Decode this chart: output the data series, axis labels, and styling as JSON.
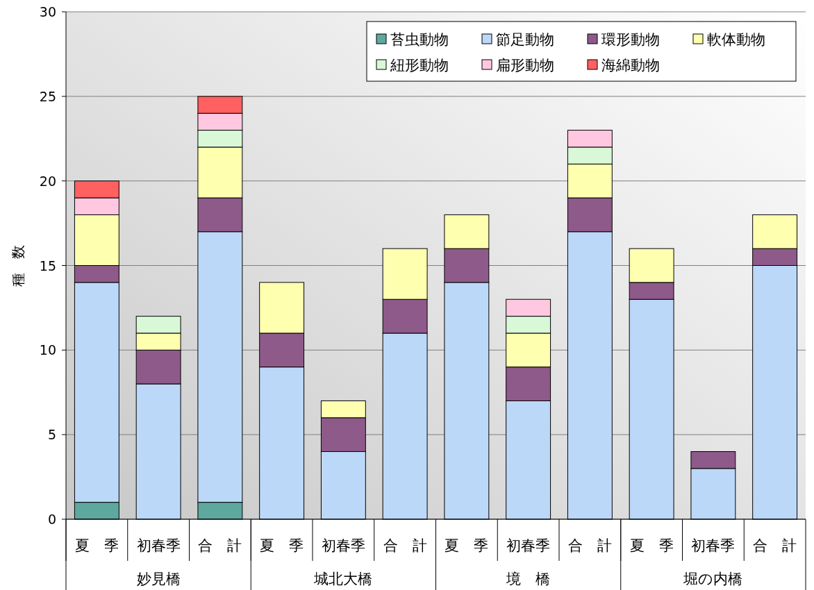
{
  "chart_data": {
    "type": "bar",
    "stacked": true,
    "ylabel": "種　数",
    "categories": [
      "夏　季",
      "初春季",
      "合　計",
      "夏　季",
      "初春季",
      "合　計",
      "夏　季",
      "初春季",
      "合　計",
      "夏　季",
      "初春季",
      "合　計"
    ],
    "annotations": [
      "妙見橋",
      "城北大橋",
      "境　橋",
      "堀の内橋"
    ],
    "series": [
      {
        "name": "苔虫動物",
        "color": "#5fa8a0",
        "values": [
          1,
          0,
          1,
          0,
          0,
          0,
          0,
          0,
          0,
          0,
          0,
          0
        ]
      },
      {
        "name": "節足動物",
        "color": "#bcd8f8",
        "values": [
          13,
          8,
          16,
          9,
          4,
          11,
          14,
          7,
          17,
          13,
          3,
          15
        ]
      },
      {
        "name": "環形動物",
        "color": "#8e5a8a",
        "values": [
          1,
          2,
          2,
          2,
          2,
          2,
          2,
          2,
          2,
          1,
          1,
          1
        ]
      },
      {
        "name": "軟体動物",
        "color": "#ffffb0",
        "values": [
          3,
          1,
          3,
          3,
          1,
          3,
          2,
          2,
          2,
          2,
          0,
          2
        ]
      },
      {
        "name": "紐形動物",
        "color": "#d8f8d8",
        "values": [
          0,
          1,
          1,
          0,
          0,
          0,
          0,
          1,
          1,
          0,
          0,
          0
        ]
      },
      {
        "name": "扁形動物",
        "color": "#ffc8e0",
        "values": [
          1,
          0,
          1,
          0,
          0,
          0,
          0,
          1,
          1,
          0,
          0,
          0
        ]
      },
      {
        "name": "海綿動物",
        "color": "#ff6060",
        "values": [
          1,
          0,
          1,
          0,
          0,
          0,
          0,
          0,
          0,
          0,
          0,
          0
        ]
      }
    ],
    "ylim": [
      0,
      30
    ],
    "yticks": [
      0,
      5,
      10,
      15,
      20,
      25,
      30
    ],
    "grid": "y",
    "legend": "top right"
  }
}
